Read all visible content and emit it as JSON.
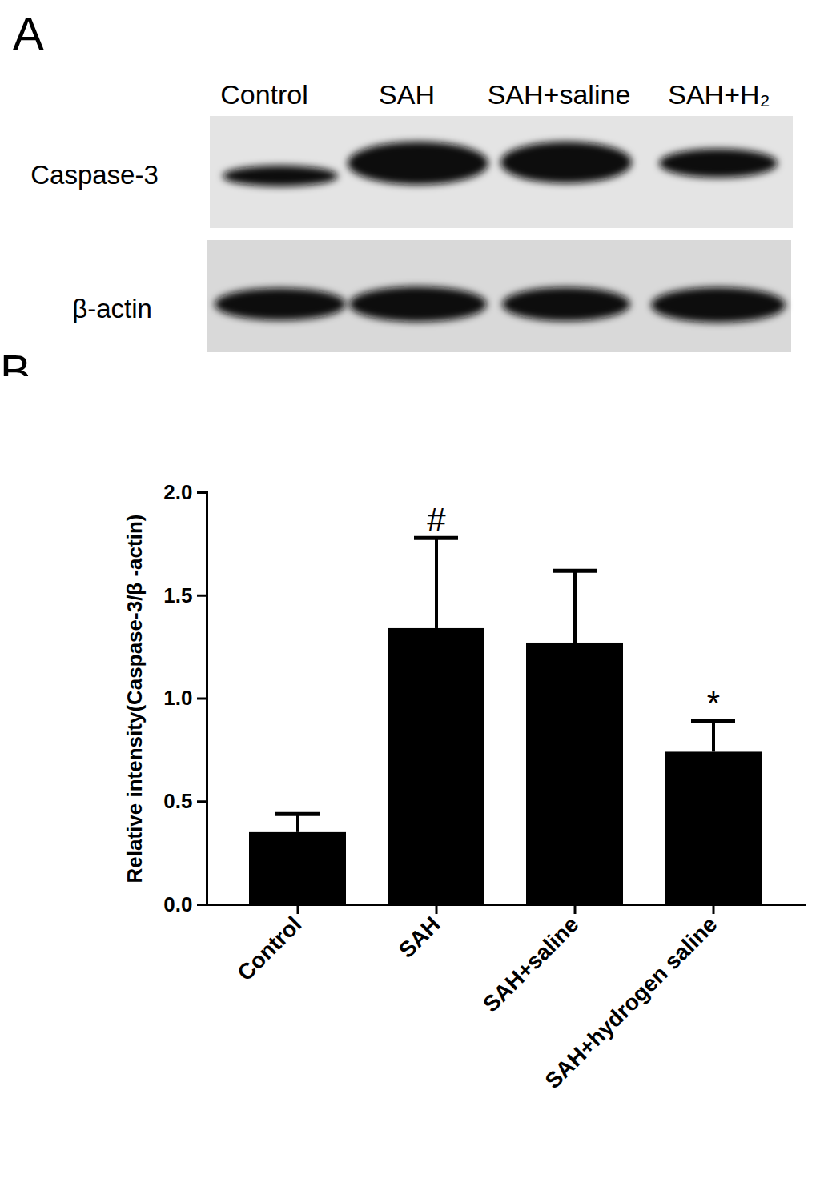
{
  "blot": {
    "panel": "A",
    "lanes": [
      "Control",
      "SAH",
      "SAH+saline",
      "SAH+H₂"
    ],
    "rows": [
      "Caspase-3",
      "β-actin"
    ]
  },
  "chart_data": {
    "type": "bar",
    "panel": "B",
    "categories": [
      "Control",
      "SAH",
      "SAH+saline",
      "SAH+hydrogen saline"
    ],
    "values": [
      0.35,
      1.34,
      1.27,
      0.74
    ],
    "error": [
      0.09,
      0.44,
      0.35,
      0.15
    ],
    "annotations": [
      {
        "category": "SAH",
        "text": "#"
      },
      {
        "category": "SAH+hydrogen saline",
        "text": "*"
      }
    ],
    "color": "#000000",
    "ylabel": "Relative intensity(Caspase-3/β -actin)",
    "ylim": [
      0,
      2.0
    ],
    "yticks": [
      {
        "value": 0,
        "label": "0.0"
      },
      {
        "value": 0.5,
        "label": "0.5"
      },
      {
        "value": 1,
        "label": "1.0"
      },
      {
        "value": 1.5,
        "label": "1.5"
      },
      {
        "value": 2,
        "label": "2.0"
      }
    ],
    "grid": false
  }
}
